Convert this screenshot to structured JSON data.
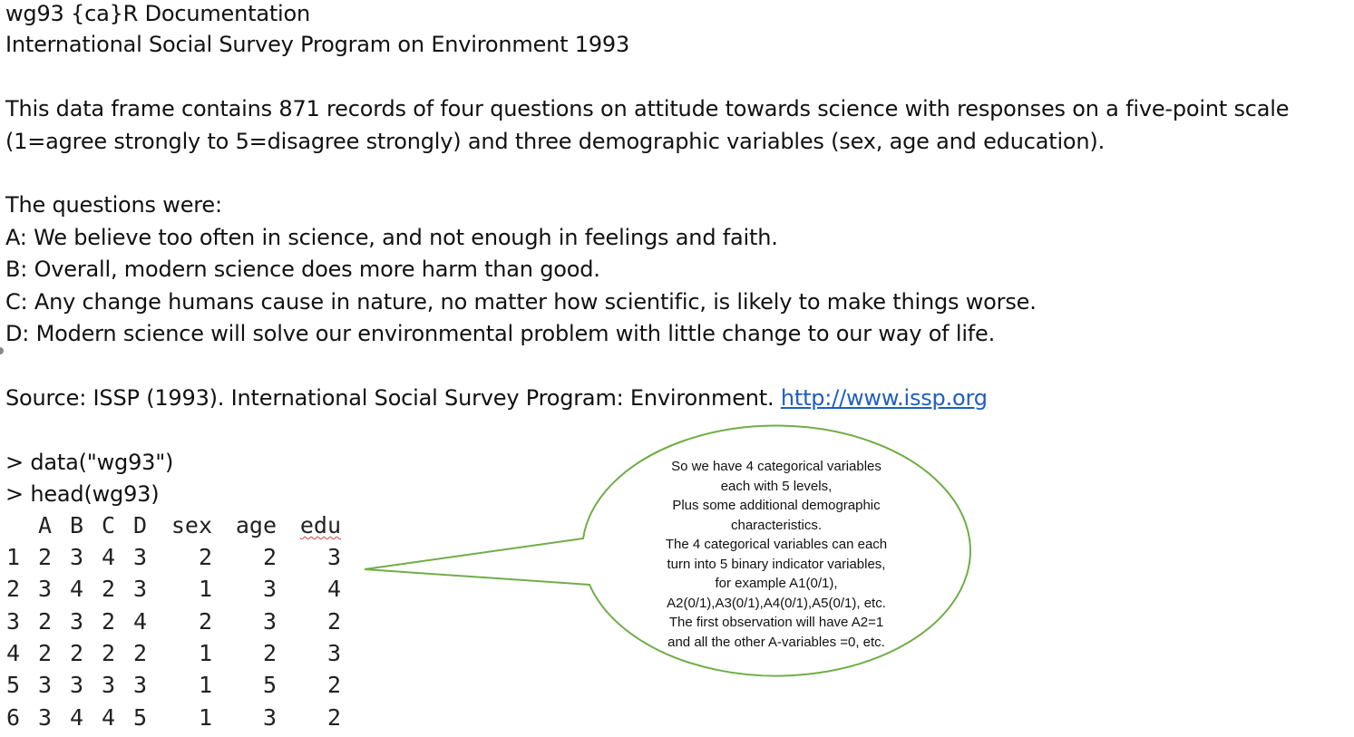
{
  "doc": {
    "header": "wg93 {ca}R Documentation",
    "title": "International Social Survey Program on Environment 1993",
    "desc_line1": "This data frame contains 871 records of four questions on attitude towards science with responses on a five-point scale",
    "desc_line2": "(1=agree strongly to 5=disagree strongly) and three demographic variables (sex, age and education).",
    "questions_heading": "The questions were:",
    "q_a": "A: We believe too often in science, and not enough in feelings and faith.",
    "q_b": "B: Overall, modern science does more harm than good.",
    "q_c": "C: Any change humans cause in nature, no matter how scientific, is likely to make things worse.",
    "q_d": "D: Modern science will solve our environmental problem with little change to our way of life.",
    "source_text": "Source: ISSP (1993). International Social Survey Program: Environment. ",
    "source_link": "http://www.issp.org"
  },
  "console": {
    "cmd1": "> data(\"wg93\")",
    "cmd2": "> head(wg93)",
    "columns": [
      "A",
      "B",
      "C",
      "D",
      "sex",
      "age",
      "edu"
    ],
    "rows": [
      {
        "idx": "1",
        "A": "2",
        "B": "3",
        "C": "4",
        "D": "3",
        "sex": "2",
        "age": "2",
        "edu": "3"
      },
      {
        "idx": "2",
        "A": "3",
        "B": "4",
        "C": "2",
        "D": "3",
        "sex": "1",
        "age": "3",
        "edu": "4"
      },
      {
        "idx": "3",
        "A": "2",
        "B": "3",
        "C": "2",
        "D": "4",
        "sex": "2",
        "age": "3",
        "edu": "2"
      },
      {
        "idx": "4",
        "A": "2",
        "B": "2",
        "C": "2",
        "D": "2",
        "sex": "1",
        "age": "2",
        "edu": "3"
      },
      {
        "idx": "5",
        "A": "3",
        "B": "3",
        "C": "3",
        "D": "3",
        "sex": "1",
        "age": "5",
        "edu": "2"
      },
      {
        "idx": "6",
        "A": "3",
        "B": "4",
        "C": "4",
        "D": "5",
        "sex": "1",
        "age": "3",
        "edu": "2"
      }
    ]
  },
  "callout": {
    "lines": [
      "So we have 4 categorical variables",
      "each with 5 levels,",
      "Plus some additional demographic",
      "characteristics.",
      "The 4 categorical variables can each",
      "turn into 5 binary indicator variables,",
      "for example A1(0/1),",
      "A2(0/1),A3(0/1),A4(0/1),A5(0/1), etc.",
      "The first observation will have A2=1",
      "and all the other A-variables =0, etc."
    ],
    "border_color": "#70ad47"
  },
  "colors": {
    "link": "#1f5fbf",
    "text": "#111111"
  }
}
